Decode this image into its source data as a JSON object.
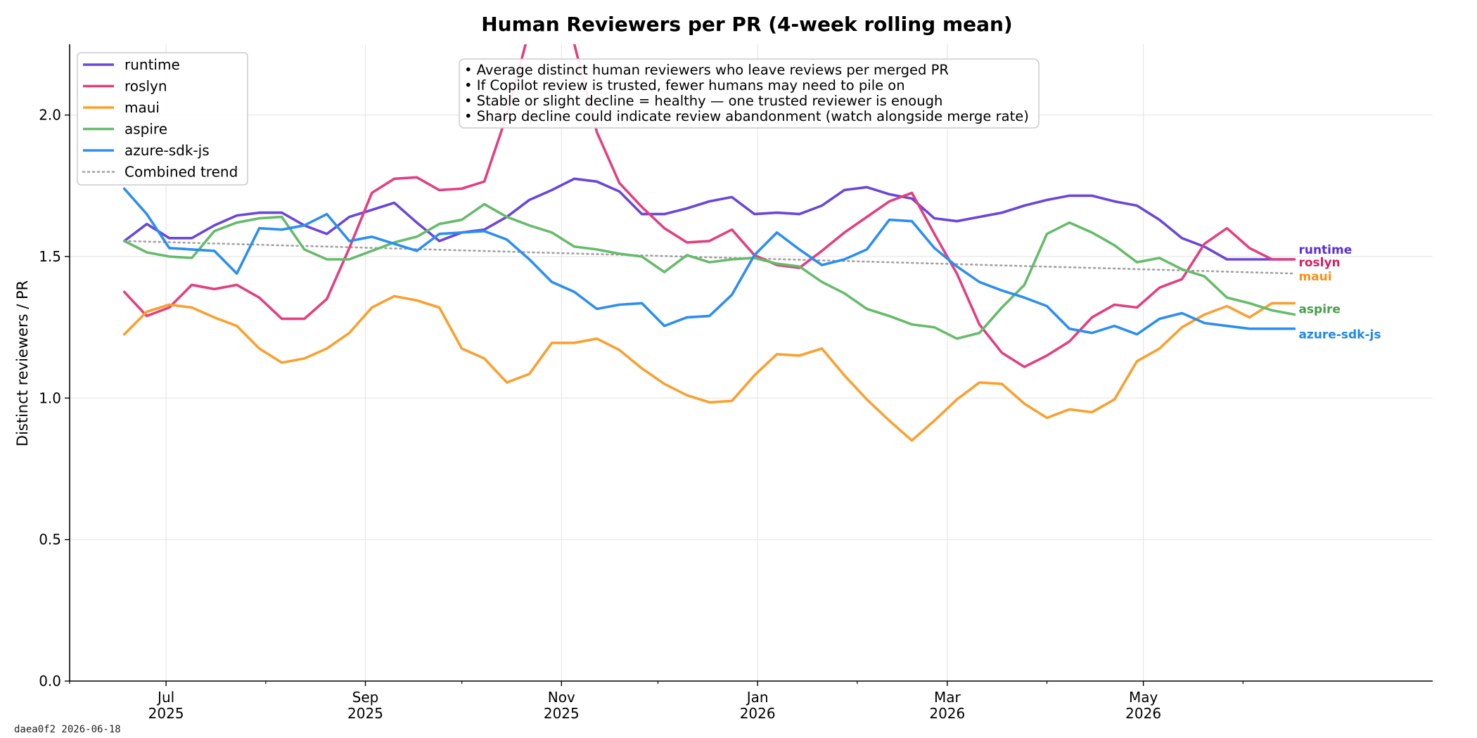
{
  "footer": "daea0f2  2026-06-18",
  "chart_data": {
    "type": "line",
    "title": "Human Reviewers per PR (4-week rolling mean)",
    "xlabel": "",
    "ylabel": "Distinct reviewers / PR",
    "ylim": [
      0,
      2.25
    ],
    "yticks": [
      0.0,
      0.5,
      1.0,
      1.5,
      2.0
    ],
    "ytick_labels": [
      "0.0",
      "0.5",
      "1.0",
      "1.5",
      "2.0"
    ],
    "x_date_range": [
      "2025-06-01",
      "2026-07-30"
    ],
    "xticks": [
      {
        "date": "2025-07-01",
        "label1": "Jul",
        "label2": "2025"
      },
      {
        "date": "2025-09-01",
        "label1": "Sep",
        "label2": "2025"
      },
      {
        "date": "2025-11-01",
        "label1": "Nov",
        "label2": "2025"
      },
      {
        "date": "2026-01-01",
        "label1": "Jan",
        "label2": "2026"
      },
      {
        "date": "2026-03-01",
        "label1": "Mar",
        "label2": "2026"
      },
      {
        "date": "2026-05-01",
        "label1": "May",
        "label2": "2026"
      }
    ],
    "minor_ticks": [
      "2025-06-01",
      "2025-08-01",
      "2025-10-01",
      "2025-12-01",
      "2026-02-01",
      "2026-04-01",
      "2026-06-01"
    ],
    "grid": true,
    "legend_position": "upper-left",
    "x_dates": [
      "2025-06-18",
      "2025-06-25",
      "2025-07-02",
      "2025-07-09",
      "2025-07-16",
      "2025-07-23",
      "2025-07-30",
      "2025-08-06",
      "2025-08-13",
      "2025-08-20",
      "2025-08-27",
      "2025-09-03",
      "2025-09-10",
      "2025-09-17",
      "2025-09-24",
      "2025-10-01",
      "2025-10-08",
      "2025-10-15",
      "2025-10-22",
      "2025-10-29",
      "2025-11-05",
      "2025-11-12",
      "2025-11-19",
      "2025-11-26",
      "2025-12-03",
      "2025-12-10",
      "2025-12-17",
      "2025-12-24",
      "2025-12-31",
      "2026-01-07",
      "2026-01-14",
      "2026-01-21",
      "2026-01-28",
      "2026-02-04",
      "2026-02-11",
      "2026-02-18",
      "2026-02-25",
      "2026-03-04",
      "2026-03-11",
      "2026-03-18",
      "2026-03-25",
      "2026-04-01",
      "2026-04-08",
      "2026-04-15",
      "2026-04-22",
      "2026-04-29",
      "2026-05-06",
      "2026-05-13",
      "2026-05-20",
      "2026-05-27",
      "2026-06-03",
      "2026-06-10",
      "2026-06-17"
    ],
    "series": [
      {
        "name": "runtime",
        "color": "#6a46d9",
        "end_label_color": "#5a2fd1",
        "end_label_offset": 0.035,
        "values": [
          1.555,
          1.615,
          1.565,
          1.565,
          1.61,
          1.645,
          1.655,
          1.655,
          1.61,
          1.58,
          1.64,
          1.665,
          1.69,
          1.62,
          1.555,
          1.585,
          1.595,
          1.64,
          1.7,
          1.735,
          1.775,
          1.765,
          1.73,
          1.65,
          1.65,
          1.67,
          1.695,
          1.71,
          1.65,
          1.655,
          1.65,
          1.68,
          1.735,
          1.745,
          1.72,
          1.705,
          1.635,
          1.625,
          1.64,
          1.655,
          1.68,
          1.7,
          1.715,
          1.715,
          1.695,
          1.68,
          1.63,
          1.565,
          1.535,
          1.49,
          1.49,
          1.49,
          1.49
        ]
      },
      {
        "name": "roslyn",
        "color": "#e23f80",
        "end_label_color": "#d81b60",
        "end_label_offset": -0.01,
        "values": [
          1.375,
          1.29,
          1.32,
          1.4,
          1.385,
          1.4,
          1.355,
          1.28,
          1.28,
          1.35,
          1.53,
          1.725,
          1.775,
          1.78,
          1.735,
          1.74,
          1.765,
          2.0,
          2.3,
          2.35,
          2.25,
          1.94,
          1.76,
          1.675,
          1.6,
          1.55,
          1.555,
          1.595,
          1.505,
          1.47,
          1.46,
          1.52,
          1.585,
          1.64,
          1.695,
          1.725,
          1.58,
          1.44,
          1.26,
          1.16,
          1.11,
          1.15,
          1.2,
          1.285,
          1.33,
          1.32,
          1.39,
          1.42,
          1.545,
          1.6,
          1.53,
          1.49,
          1.49
        ]
      },
      {
        "name": "maui",
        "color": "#f9a02f",
        "end_label_color": "#f7901c",
        "end_label_offset": 0.095,
        "values": [
          1.225,
          1.305,
          1.33,
          1.32,
          1.285,
          1.255,
          1.175,
          1.125,
          1.14,
          1.175,
          1.23,
          1.32,
          1.36,
          1.345,
          1.32,
          1.175,
          1.14,
          1.055,
          1.085,
          1.195,
          1.195,
          1.21,
          1.17,
          1.105,
          1.05,
          1.01,
          0.985,
          0.99,
          1.08,
          1.155,
          1.15,
          1.175,
          1.08,
          0.995,
          0.92,
          0.85,
          0.92,
          0.995,
          1.055,
          1.05,
          0.98,
          0.93,
          0.96,
          0.95,
          0.995,
          1.13,
          1.175,
          1.25,
          1.295,
          1.325,
          1.285,
          1.335,
          1.335
        ]
      },
      {
        "name": "aspire",
        "color": "#66bb6a",
        "end_label_color": "#43a047",
        "end_label_offset": 0.02,
        "values": [
          1.555,
          1.515,
          1.5,
          1.495,
          1.59,
          1.62,
          1.635,
          1.64,
          1.525,
          1.49,
          1.49,
          1.52,
          1.55,
          1.57,
          1.615,
          1.63,
          1.685,
          1.64,
          1.61,
          1.585,
          1.535,
          1.525,
          1.51,
          1.5,
          1.445,
          1.505,
          1.48,
          1.49,
          1.495,
          1.475,
          1.465,
          1.41,
          1.37,
          1.315,
          1.29,
          1.26,
          1.25,
          1.21,
          1.23,
          1.32,
          1.4,
          1.58,
          1.62,
          1.585,
          1.54,
          1.48,
          1.495,
          1.455,
          1.43,
          1.355,
          1.335,
          1.31,
          1.295
        ]
      },
      {
        "name": "azure-sdk-js",
        "color": "#2b8ef0",
        "end_label_color": "#1e88e5",
        "end_label_offset": -0.02,
        "values": [
          1.74,
          1.65,
          1.53,
          1.525,
          1.52,
          1.44,
          1.6,
          1.595,
          1.61,
          1.65,
          1.555,
          1.57,
          1.545,
          1.52,
          1.58,
          1.585,
          1.59,
          1.56,
          1.49,
          1.41,
          1.375,
          1.315,
          1.33,
          1.335,
          1.255,
          1.285,
          1.29,
          1.365,
          1.505,
          1.585,
          1.525,
          1.47,
          1.49,
          1.525,
          1.63,
          1.625,
          1.53,
          1.465,
          1.41,
          1.38,
          1.355,
          1.325,
          1.245,
          1.23,
          1.255,
          1.225,
          1.28,
          1.3,
          1.265,
          1.255,
          1.245,
          1.245,
          1.245
        ]
      }
    ],
    "trend": {
      "name": "Combined trend",
      "color": "#a0a0a0",
      "start": 1.555,
      "end": 1.44
    },
    "annotation_lines": [
      "• Average distinct human reviewers who leave reviews per merged PR",
      "• If Copilot review is trusted, fewer humans may need to pile on",
      "• Stable or slight decline = healthy — one trusted reviewer is enough",
      "• Sharp decline could indicate review abandonment (watch alongside merge rate)"
    ]
  }
}
